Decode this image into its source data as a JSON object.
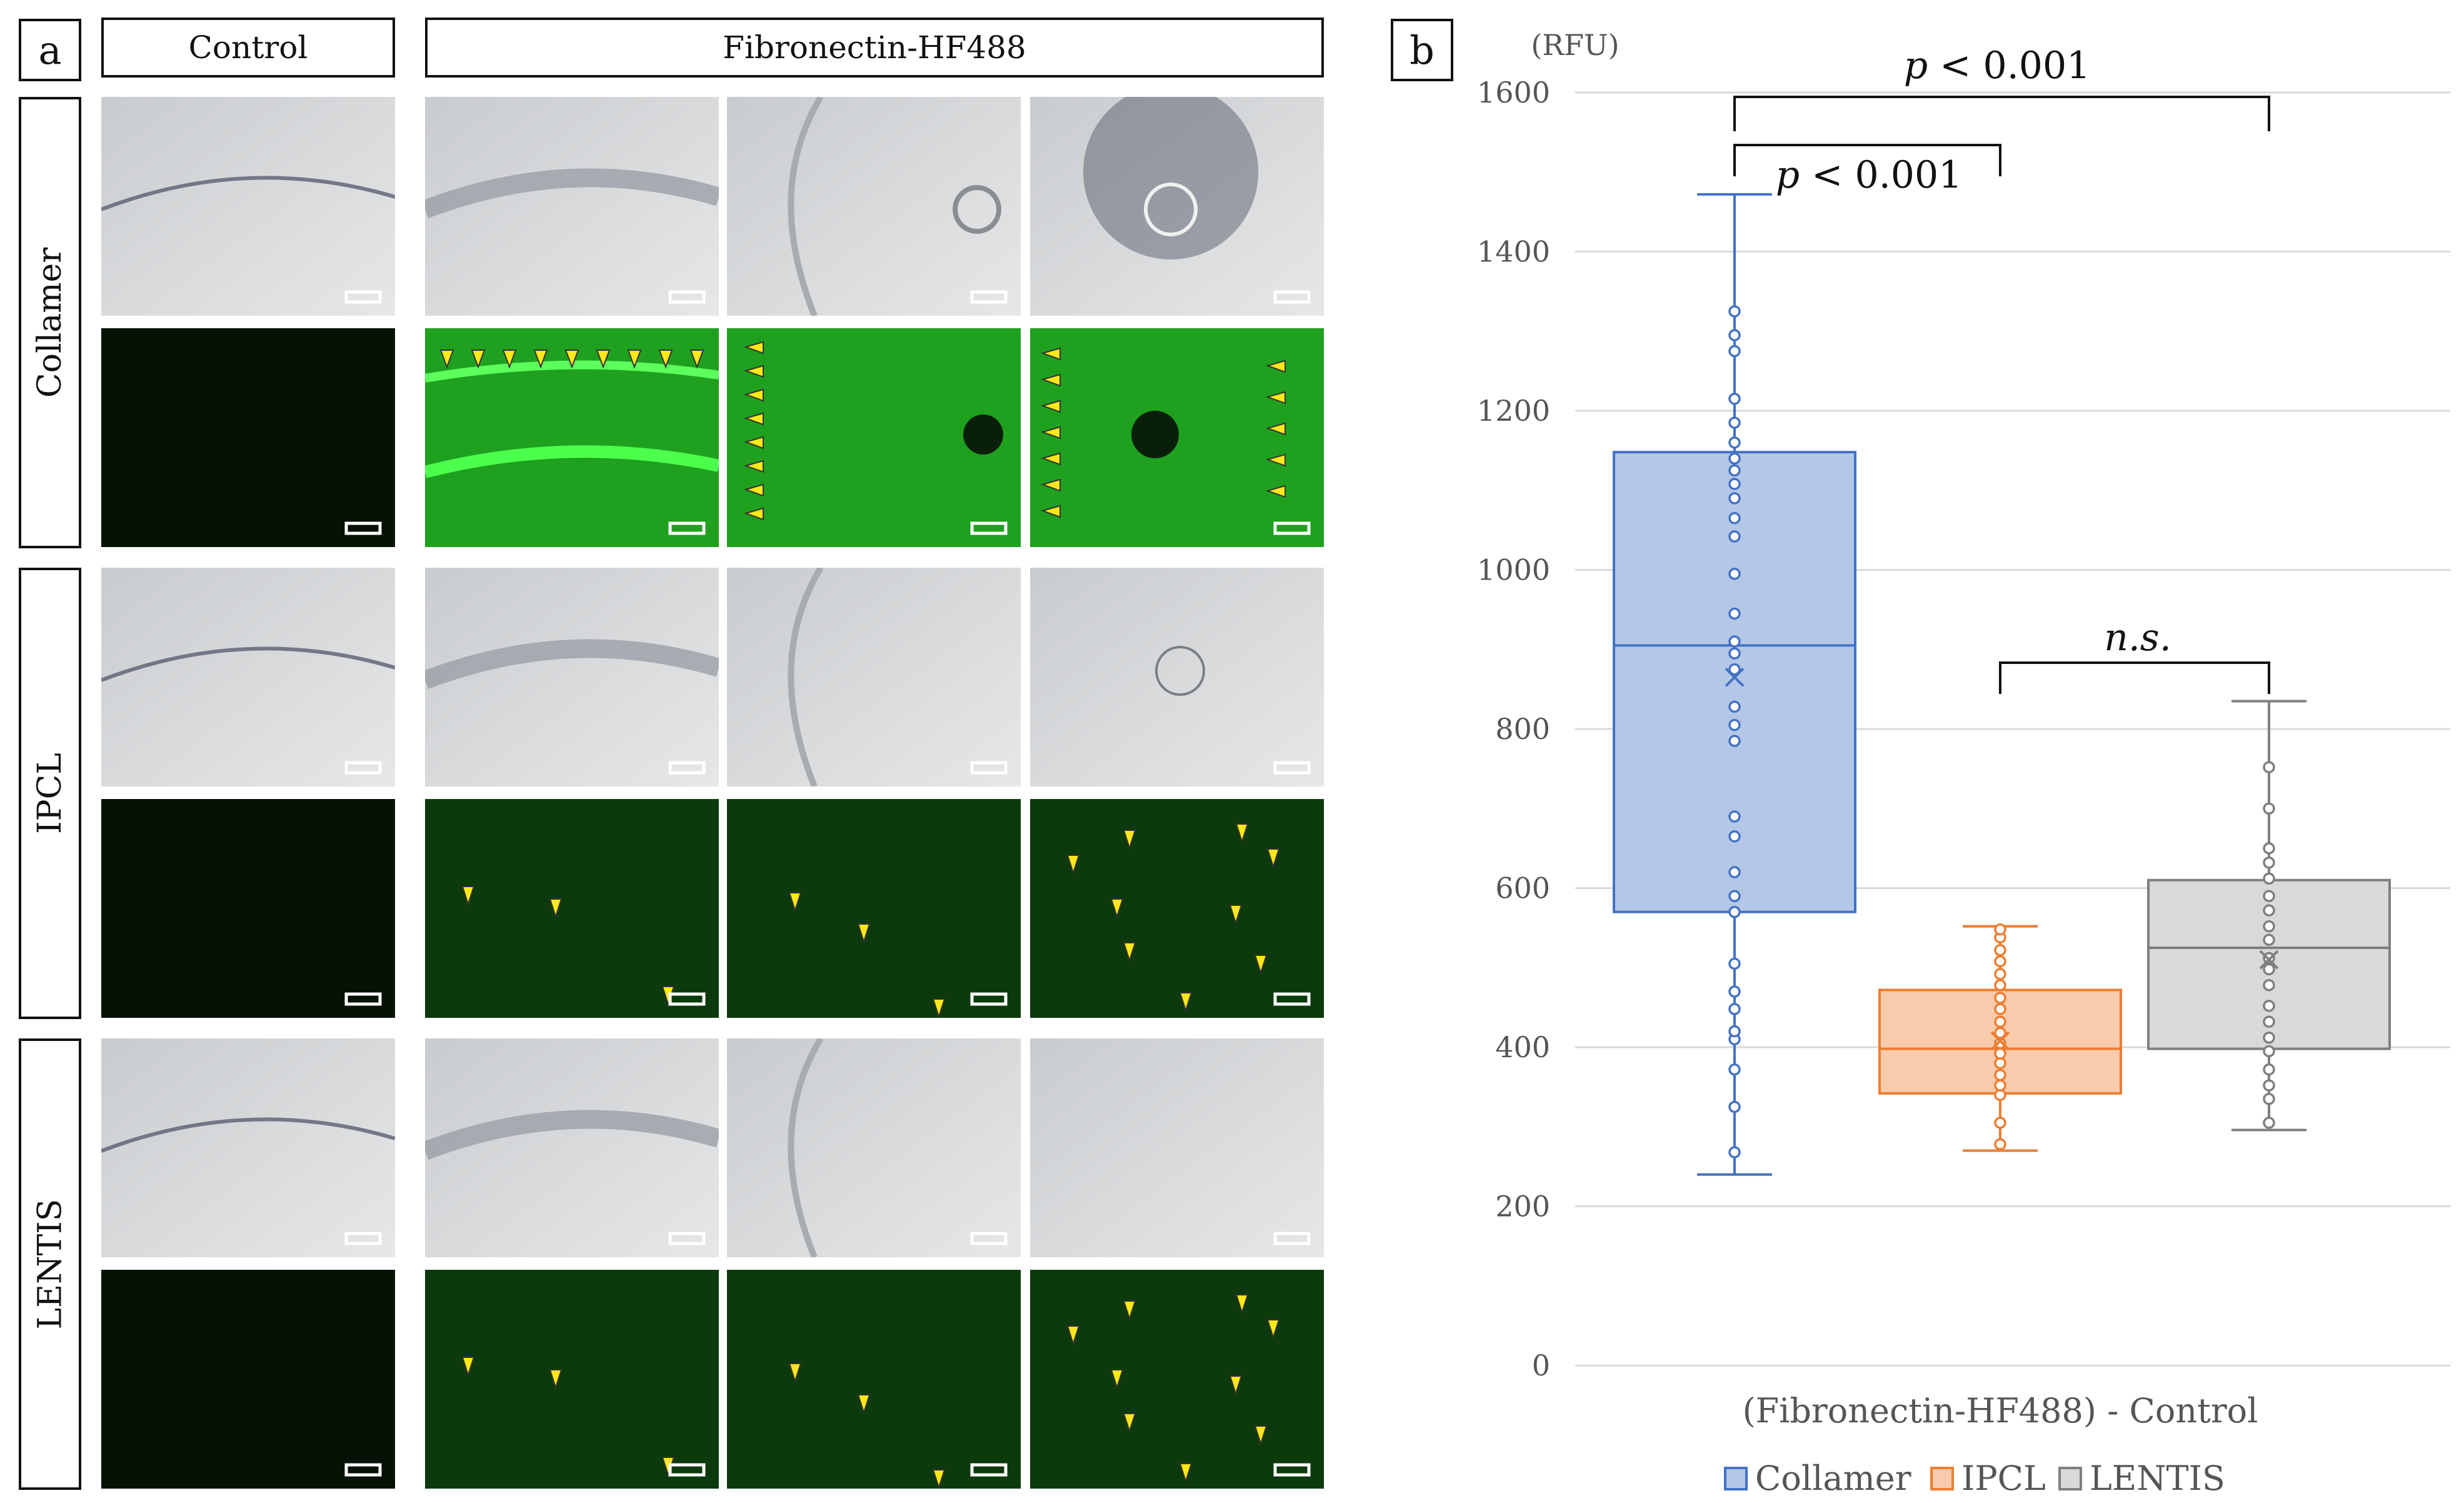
{
  "panel_a": {
    "letter": "a",
    "col_headers": {
      "control": "Control",
      "fibronectin": "Fibronectin-HF488"
    },
    "rows": [
      {
        "label": "Collamer",
        "fluor_level": "high"
      },
      {
        "label": "IPCL",
        "fluor_level": "low"
      },
      {
        "label": "LENTIS",
        "fluor_level": "low"
      }
    ]
  },
  "chart_data": {
    "panel_letter": "b",
    "type": "box",
    "ylabel": "(RFU)",
    "xlabel": "(Fibronectin-HF488) - Control",
    "ylim": [
      0,
      1600
    ],
    "yticks": [
      0,
      200,
      400,
      600,
      800,
      1000,
      1200,
      1400,
      1600
    ],
    "grid": true,
    "legend_position": "bottom",
    "series": [
      {
        "name": "Collamer",
        "color": "#4472c4",
        "fill": "#b4c7e7",
        "min": 240,
        "q1": 570,
        "median": 905,
        "q3": 1148,
        "max": 1472,
        "mean": 865,
        "points": [
          268,
          325,
          372,
          410,
          420,
          448,
          470,
          505,
          570,
          590,
          620,
          665,
          690,
          785,
          805,
          828,
          875,
          895,
          910,
          945,
          995,
          1042,
          1065,
          1090,
          1108,
          1125,
          1140,
          1160,
          1185,
          1215,
          1275,
          1295,
          1325
        ]
      },
      {
        "name": "IPCL",
        "color": "#ed7d31",
        "fill": "#f8cbad",
        "min": 270,
        "q1": 342,
        "median": 398,
        "q3": 472,
        "max": 552,
        "mean": 408,
        "points": [
          278,
          305,
          340,
          352,
          365,
          380,
          392,
          405,
          418,
          432,
          448,
          462,
          478,
          492,
          508,
          522,
          538,
          548
        ]
      },
      {
        "name": "LENTIS",
        "color": "#7f7f7f",
        "fill": "#d9d9d9",
        "min": 296,
        "q1": 398,
        "median": 525,
        "q3": 610,
        "max": 835,
        "mean": 510,
        "points": [
          305,
          335,
          352,
          372,
          395,
          412,
          432,
          452,
          478,
          498,
          512,
          535,
          552,
          572,
          590,
          612,
          632,
          650,
          700,
          752
        ]
      }
    ],
    "comparisons": [
      {
        "from": "Collamer",
        "to": "IPCL",
        "label": "p < 0.001"
      },
      {
        "from": "Collamer",
        "to": "LENTIS",
        "label": "p < 0.001"
      },
      {
        "from": "IPCL",
        "to": "LENTIS",
        "label": "n.s."
      }
    ]
  }
}
